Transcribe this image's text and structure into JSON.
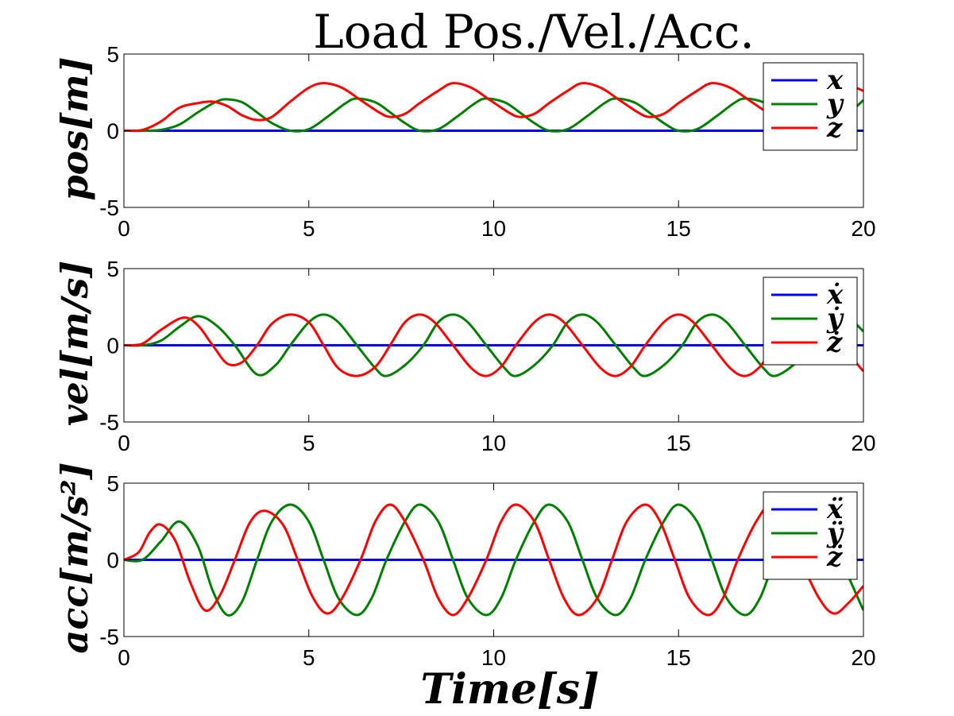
{
  "figure": {
    "title": "Load Pos./Vel./Acc.",
    "xlabel": "Time[s]"
  },
  "chart_data": [
    {
      "type": "line",
      "ylabel": "pos[m]",
      "xlim": [
        0,
        20
      ],
      "ylim": [
        -5,
        5
      ],
      "xticks": [
        0,
        5,
        10,
        15,
        20
      ],
      "yticks": [
        -5,
        0,
        5
      ],
      "legend_position": "top-right",
      "series": [
        {
          "name": "x",
          "color": "#0000ff",
          "x": [
            0,
            20
          ],
          "y": [
            0,
            0
          ]
        },
        {
          "name": "y",
          "color": "#008000",
          "x": [
            0,
            0.5,
            1.0,
            1.5,
            2.0,
            2.5,
            2.8,
            3.2,
            3.6,
            4.0,
            4.5,
            5.0,
            5.5,
            6.0,
            6.3,
            6.8,
            7.2,
            7.6,
            8.0,
            8.5,
            9.0,
            9.5,
            9.8,
            10.3,
            10.7,
            11.1,
            11.5,
            12.0,
            12.5,
            13.0,
            13.3,
            13.8,
            14.2,
            14.6,
            15.0,
            15.5,
            16.0,
            16.5,
            16.8,
            17.3,
            17.7,
            18.1,
            18.5,
            19.0,
            19.5,
            20.0
          ],
          "y": [
            0,
            0,
            0.05,
            0.4,
            1.2,
            1.9,
            2.05,
            1.85,
            1.2,
            0.5,
            0,
            0.1,
            0.9,
            1.8,
            2.1,
            1.85,
            1.2,
            0.5,
            0,
            0.1,
            0.9,
            1.8,
            2.1,
            1.85,
            1.2,
            0.5,
            0,
            0.1,
            0.9,
            1.8,
            2.1,
            1.85,
            1.2,
            0.5,
            0,
            0.1,
            0.9,
            1.8,
            2.1,
            1.85,
            1.2,
            0.5,
            0,
            0.1,
            0.9,
            2.0
          ]
        },
        {
          "name": "z",
          "color": "#ff0000",
          "x": [
            0,
            0.5,
            1.0,
            1.5,
            2.0,
            2.4,
            2.8,
            3.2,
            3.6,
            4.0,
            4.5,
            5.0,
            5.4,
            5.9,
            6.4,
            6.9,
            7.2,
            7.6,
            8.0,
            8.5,
            8.9,
            9.4,
            9.9,
            10.4,
            10.7,
            11.1,
            11.5,
            12.0,
            12.4,
            12.9,
            13.4,
            13.9,
            14.2,
            14.6,
            15.0,
            15.5,
            15.9,
            16.4,
            16.9,
            17.4,
            17.7,
            18.1,
            18.5,
            19.0,
            19.4,
            20.0
          ],
          "y": [
            0,
            0.05,
            0.6,
            1.5,
            1.8,
            1.9,
            1.6,
            1.0,
            0.7,
            0.9,
            1.9,
            2.8,
            3.1,
            2.8,
            2.0,
            1.2,
            0.9,
            1.1,
            1.8,
            2.6,
            3.1,
            2.8,
            2.0,
            1.2,
            0.9,
            1.1,
            1.8,
            2.6,
            3.1,
            2.8,
            2.0,
            1.2,
            0.9,
            1.1,
            1.8,
            2.6,
            3.1,
            2.8,
            2.0,
            1.2,
            0.9,
            1.1,
            1.8,
            2.6,
            3.1,
            2.6
          ]
        }
      ]
    },
    {
      "type": "line",
      "ylabel": "vel[m/s]",
      "xlim": [
        0,
        20
      ],
      "ylim": [
        -5,
        5
      ],
      "xticks": [
        0,
        5,
        10,
        15,
        20
      ],
      "yticks": [
        -5,
        0,
        5
      ],
      "legend_position": "top-right",
      "series": [
        {
          "name": "ẋ",
          "color": "#0000ff",
          "x": [
            0,
            20
          ],
          "y": [
            0,
            0
          ]
        },
        {
          "name": "ẏ",
          "color": "#008000",
          "x": [
            0,
            0.5,
            1.0,
            1.5,
            2.0,
            2.5,
            3.0,
            3.6,
            4.1,
            4.5,
            5.0,
            5.4,
            5.8,
            6.3,
            6.8,
            7.1,
            7.6,
            8.1,
            8.5,
            8.9,
            9.3,
            9.8,
            10.3,
            10.6,
            11.1,
            11.6,
            12.0,
            12.4,
            12.8,
            13.3,
            13.8,
            14.1,
            14.6,
            15.1,
            15.5,
            15.9,
            16.3,
            16.8,
            17.3,
            17.6,
            18.1,
            18.6,
            19.0,
            19.4,
            19.7,
            20.0
          ],
          "y": [
            0,
            0,
            0.3,
            1.2,
            1.9,
            1.3,
            0,
            -1.9,
            -1.3,
            0,
            1.5,
            2.0,
            1.5,
            0,
            -1.5,
            -2.0,
            -1.3,
            0,
            1.5,
            2.0,
            1.5,
            0,
            -1.5,
            -2.0,
            -1.3,
            0,
            1.5,
            2.0,
            1.5,
            0,
            -1.5,
            -2.0,
            -1.3,
            0,
            1.5,
            2.0,
            1.5,
            0,
            -1.5,
            -2.0,
            -1.3,
            0,
            1.5,
            2.0,
            1.6,
            0.9
          ]
        },
        {
          "name": "ż",
          "color": "#ff0000",
          "x": [
            0,
            0.5,
            1.0,
            1.6,
            2.0,
            2.4,
            2.8,
            3.2,
            3.6,
            4.0,
            4.5,
            5.0,
            5.4,
            5.8,
            6.3,
            6.8,
            7.2,
            7.6,
            8.0,
            8.4,
            8.9,
            9.4,
            9.8,
            10.2,
            10.6,
            11.1,
            11.5,
            11.9,
            12.4,
            12.9,
            13.3,
            13.7,
            14.1,
            14.6,
            15.0,
            15.4,
            15.9,
            16.4,
            16.8,
            17.2,
            17.6,
            18.1,
            18.5,
            18.9,
            19.4,
            20.0
          ],
          "y": [
            0,
            0.1,
            1.0,
            1.8,
            1.3,
            0,
            -1.2,
            -1.1,
            0,
            1.4,
            2.0,
            1.5,
            0,
            -1.5,
            -2.0,
            -1.4,
            0,
            1.5,
            2.0,
            1.5,
            0,
            -1.5,
            -2.0,
            -1.4,
            0,
            1.5,
            2.0,
            1.5,
            0,
            -1.5,
            -2.0,
            -1.4,
            0,
            1.5,
            2.0,
            1.5,
            0,
            -1.5,
            -2.0,
            -1.4,
            0,
            1.5,
            2.0,
            1.5,
            0,
            -1.7
          ]
        }
      ]
    },
    {
      "type": "line",
      "ylabel": "acc[m/s²]",
      "xlim": [
        0,
        20
      ],
      "ylim": [
        -5,
        5
      ],
      "xticks": [
        0,
        5,
        10,
        15,
        20
      ],
      "yticks": [
        -5,
        0,
        5
      ],
      "legend_position": "top-right",
      "series": [
        {
          "name": "ẍ",
          "color": "#0000ff",
          "x": [
            0,
            20
          ],
          "y": [
            0,
            0
          ]
        },
        {
          "name": "ÿ",
          "color": "#008000",
          "x": [
            0,
            0.5,
            1.0,
            1.5,
            2.0,
            2.4,
            2.8,
            3.2,
            3.6,
            4.0,
            4.5,
            5.0,
            5.4,
            5.8,
            6.3,
            6.7,
            7.1,
            7.6,
            8.0,
            8.5,
            8.9,
            9.3,
            9.8,
            10.2,
            10.6,
            11.1,
            11.5,
            12.0,
            12.4,
            12.8,
            13.3,
            13.7,
            14.1,
            14.6,
            15.0,
            15.5,
            15.9,
            16.3,
            16.8,
            17.2,
            17.6,
            18.1,
            18.5,
            19.0,
            19.4,
            20.0
          ],
          "y": [
            0,
            0,
            1.2,
            2.5,
            0.9,
            -2.0,
            -3.6,
            -2.7,
            0,
            2.5,
            3.6,
            2.5,
            0,
            -2.5,
            -3.6,
            -2.5,
            0,
            2.5,
            3.6,
            2.5,
            0,
            -2.5,
            -3.6,
            -2.5,
            0,
            2.5,
            3.6,
            2.5,
            0,
            -2.5,
            -3.6,
            -2.5,
            0,
            2.5,
            3.6,
            2.5,
            0,
            -2.5,
            -3.6,
            -2.5,
            0,
            2.5,
            3.6,
            2.5,
            0,
            -3.3
          ]
        },
        {
          "name": "z̈",
          "color": "#ff0000",
          "x": [
            0,
            0.4,
            0.7,
            1.0,
            1.4,
            1.8,
            2.2,
            2.6,
            3.0,
            3.4,
            3.8,
            4.3,
            4.7,
            5.1,
            5.5,
            5.9,
            6.4,
            6.8,
            7.2,
            7.6,
            8.1,
            8.5,
            8.9,
            9.3,
            9.8,
            10.2,
            10.6,
            11.1,
            11.5,
            11.9,
            12.3,
            12.8,
            13.2,
            13.6,
            14.1,
            14.5,
            14.9,
            15.3,
            15.8,
            16.2,
            16.6,
            17.1,
            17.5,
            17.9,
            18.3,
            18.8,
            19.2,
            19.6,
            20.0
          ],
          "y": [
            0,
            0.5,
            1.8,
            2.3,
            1.2,
            -1.5,
            -3.3,
            -2.3,
            0,
            2.4,
            3.2,
            2.3,
            0,
            -2.4,
            -3.5,
            -2.5,
            0,
            2.5,
            3.6,
            2.5,
            0,
            -2.5,
            -3.6,
            -2.5,
            0,
            2.5,
            3.6,
            2.5,
            0,
            -2.5,
            -3.6,
            -2.5,
            0,
            2.5,
            3.6,
            2.5,
            0,
            -2.5,
            -3.6,
            -2.5,
            0,
            2.5,
            3.6,
            2.5,
            0,
            -2.5,
            -3.5,
            -2.8,
            -1.7
          ]
        }
      ]
    }
  ]
}
